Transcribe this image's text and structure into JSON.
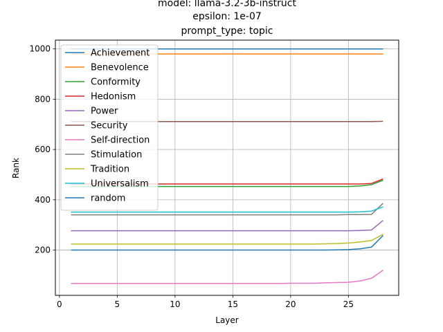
{
  "chart_data": {
    "type": "line",
    "title_lines": [
      "model: llama-3.2-3b-instruct",
      "epsilon: 1e-07",
      "prompt_type: topic"
    ],
    "xlabel": "Layer",
    "ylabel": "Rank",
    "xlim": [
      -0.35,
      29.35
    ],
    "ylim": [
      20,
      1035
    ],
    "xticks": [
      0,
      5,
      10,
      15,
      20,
      25
    ],
    "yticks": [
      200,
      400,
      600,
      800,
      1000
    ],
    "grid": true,
    "legend_position": "upper-left",
    "x": [
      1,
      2,
      3,
      4,
      5,
      6,
      7,
      8,
      9,
      10,
      11,
      12,
      13,
      14,
      15,
      16,
      17,
      18,
      19,
      20,
      21,
      22,
      23,
      24,
      25,
      26,
      27,
      28
    ],
    "series": [
      {
        "name": "Achievement",
        "color": "#1f77b4",
        "values": [
          1000,
          1000,
          1000,
          1000,
          1000,
          1000,
          1000,
          1000,
          1000,
          1000,
          1000,
          1000,
          1000,
          1000,
          1000,
          1000,
          1000,
          1000,
          1000,
          1000,
          1000,
          1000,
          1000,
          1000,
          1000,
          1000,
          1000,
          1000
        ]
      },
      {
        "name": "Benevolence",
        "color": "#ff7f0e",
        "values": [
          980,
          980,
          980,
          980,
          980,
          980,
          980,
          980,
          980,
          980,
          980,
          980,
          980,
          980,
          980,
          980,
          980,
          980,
          980,
          980,
          980,
          980,
          980,
          980,
          980,
          980,
          980,
          980
        ]
      },
      {
        "name": "Conformity",
        "color": "#2ca02c",
        "values": [
          453,
          453,
          453,
          453,
          453,
          453,
          453,
          453,
          453,
          453,
          453,
          453,
          453,
          453,
          453,
          453,
          453,
          453,
          453,
          453,
          453,
          453,
          453,
          453,
          453,
          455,
          460,
          478
        ]
      },
      {
        "name": "Hedonism",
        "color": "#d62728",
        "values": [
          463,
          463,
          463,
          463,
          463,
          463,
          463,
          463,
          463,
          463,
          463,
          463,
          463,
          463,
          463,
          463,
          463,
          463,
          463,
          463,
          463,
          463,
          463,
          463,
          463,
          463,
          465,
          483
        ]
      },
      {
        "name": "Power",
        "color": "#9467bd",
        "values": [
          277,
          277,
          277,
          277,
          277,
          277,
          277,
          277,
          277,
          277,
          277,
          277,
          277,
          277,
          277,
          277,
          277,
          277,
          277,
          277,
          277,
          277,
          277,
          277,
          277,
          278,
          280,
          318
        ]
      },
      {
        "name": "Security",
        "color": "#8c564b",
        "values": [
          711,
          711,
          711,
          711,
          711,
          711,
          711,
          711,
          711,
          711,
          711,
          711,
          711,
          711,
          711,
          711,
          711,
          711,
          711,
          711,
          711,
          711,
          711,
          711,
          711,
          711,
          711,
          712
        ]
      },
      {
        "name": "Self-direction",
        "color": "#e377c2",
        "values": [
          67,
          67,
          67,
          67,
          67,
          67,
          67,
          67,
          67,
          67,
          67,
          67,
          67,
          67,
          67,
          67,
          67,
          67,
          67,
          68,
          68,
          68,
          70,
          71,
          72,
          77,
          88,
          120
        ]
      },
      {
        "name": "Stimulation",
        "color": "#7f7f7f",
        "values": [
          340,
          340,
          340,
          340,
          340,
          340,
          340,
          340,
          340,
          340,
          340,
          340,
          340,
          340,
          340,
          340,
          340,
          340,
          340,
          340,
          340,
          340,
          340,
          340,
          341,
          341,
          342,
          386
        ]
      },
      {
        "name": "Tradition",
        "color": "#bcbd22",
        "values": [
          224,
          224,
          224,
          224,
          224,
          224,
          224,
          224,
          224,
          224,
          224,
          224,
          224,
          224,
          224,
          224,
          224,
          224,
          224,
          224,
          224,
          224,
          225,
          226,
          228,
          232,
          238,
          263
        ]
      },
      {
        "name": "Universalism",
        "color": "#17becf",
        "values": [
          351,
          351,
          351,
          351,
          351,
          351,
          351,
          351,
          351,
          351,
          351,
          351,
          351,
          351,
          351,
          351,
          351,
          351,
          351,
          351,
          351,
          351,
          351,
          351,
          351,
          352,
          355,
          372
        ]
      },
      {
        "name": "random",
        "color": "#1f77b4",
        "values": [
          200,
          200,
          200,
          200,
          200,
          200,
          200,
          200,
          200,
          200,
          200,
          200,
          200,
          200,
          200,
          200,
          200,
          200,
          200,
          200,
          200,
          200,
          200,
          201,
          202,
          205,
          212,
          258
        ]
      }
    ]
  }
}
